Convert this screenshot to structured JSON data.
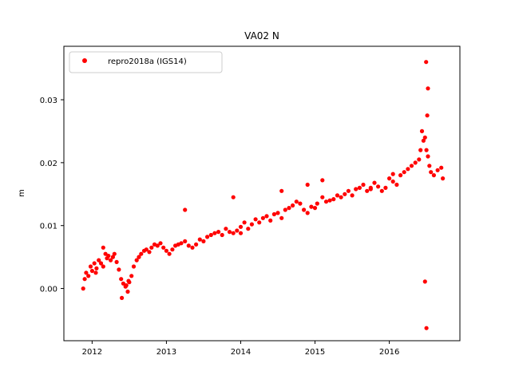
{
  "chart_data": {
    "type": "scatter",
    "title": "VA02 N",
    "xlabel": "",
    "ylabel": "m",
    "xlim": [
      2011.62,
      2016.95
    ],
    "ylim": [
      -0.0083,
      0.0385
    ],
    "x_ticks": [
      2012,
      2013,
      2014,
      2015,
      2016
    ],
    "x_tick_labels": [
      "2012",
      "2013",
      "2014",
      "2015",
      "2016"
    ],
    "y_ticks": [
      0.0,
      0.01,
      0.02,
      0.03
    ],
    "y_tick_labels": [
      "0.00",
      "0.01",
      "0.02",
      "0.03"
    ],
    "grid": false,
    "legend_position": "upper-left",
    "series": [
      {
        "name": "repro2018a (IGS14)",
        "color": "#ff0000",
        "marker": "circle",
        "x": [
          2011.88,
          2011.9,
          2011.92,
          2011.95,
          2011.98,
          2012.0,
          2012.03,
          2012.06,
          2012.09,
          2012.12,
          2012.15,
          2012.18,
          2012.2,
          2012.22,
          2012.25,
          2012.28,
          2012.3,
          2012.33,
          2012.36,
          2012.39,
          2012.42,
          2012.45,
          2012.48,
          2012.5,
          2012.53,
          2012.56,
          2012.6,
          2012.63,
          2012.66,
          2012.7,
          2012.73,
          2012.77,
          2012.8,
          2012.84,
          2012.88,
          2012.92,
          2012.96,
          2013.0,
          2013.04,
          2013.08,
          2013.12,
          2013.16,
          2013.2,
          2013.25,
          2013.3,
          2013.35,
          2013.4,
          2013.45,
          2013.5,
          2013.55,
          2013.6,
          2013.65,
          2013.7,
          2013.75,
          2013.8,
          2013.85,
          2013.9,
          2013.95,
          2014.0,
          2014.05,
          2014.1,
          2014.15,
          2014.2,
          2014.25,
          2014.3,
          2014.35,
          2014.4,
          2014.45,
          2014.5,
          2014.55,
          2014.6,
          2014.65,
          2014.7,
          2014.75,
          2014.8,
          2014.85,
          2014.9,
          2014.95,
          2015.0,
          2015.03,
          2015.1,
          2015.15,
          2015.2,
          2015.25,
          2015.3,
          2015.35,
          2015.4,
          2015.45,
          2015.5,
          2015.55,
          2015.6,
          2015.65,
          2015.7,
          2015.75,
          2015.8,
          2015.85,
          2015.9,
          2015.95,
          2016.0,
          2016.05,
          2016.1,
          2016.15,
          2016.2,
          2016.25,
          2016.3,
          2016.35,
          2016.4,
          2016.42,
          2016.44,
          2016.46,
          2016.48,
          2016.5,
          2016.52,
          2016.54,
          2016.56,
          2016.6,
          2016.65,
          2016.7,
          2016.72,
          2012.05,
          2012.15,
          2012.4,
          2012.46,
          2012.49,
          2013.25,
          2013.9,
          2014.0,
          2014.55,
          2014.9,
          2015.1,
          2015.75,
          2016.05,
          2016.48,
          2016.5,
          2016.52,
          2016.51,
          2016.495
        ],
        "y": [
          0.0,
          0.0015,
          0.0025,
          0.002,
          0.0035,
          0.0028,
          0.004,
          0.0032,
          0.0045,
          0.004,
          0.0035,
          0.0055,
          0.0048,
          0.0052,
          0.0045,
          0.005,
          0.0055,
          0.0042,
          0.003,
          0.0015,
          0.0008,
          0.0003,
          -0.0005,
          0.001,
          0.002,
          0.0035,
          0.0045,
          0.005,
          0.0055,
          0.006,
          0.0062,
          0.0058,
          0.0065,
          0.007,
          0.0068,
          0.0072,
          0.0065,
          0.006,
          0.0055,
          0.0062,
          0.0068,
          0.007,
          0.0072,
          0.0075,
          0.0068,
          0.0065,
          0.007,
          0.0078,
          0.0075,
          0.0082,
          0.0085,
          0.0088,
          0.009,
          0.0085,
          0.0095,
          0.009,
          0.0088,
          0.0092,
          0.0098,
          0.0105,
          0.0095,
          0.0102,
          0.011,
          0.0105,
          0.0112,
          0.0115,
          0.0108,
          0.0118,
          0.012,
          0.0112,
          0.0125,
          0.0128,
          0.0132,
          0.0138,
          0.0135,
          0.0125,
          0.012,
          0.013,
          0.0128,
          0.0135,
          0.0145,
          0.0138,
          0.014,
          0.0142,
          0.0148,
          0.0145,
          0.015,
          0.0155,
          0.0148,
          0.0158,
          0.016,
          0.0165,
          0.0155,
          0.016,
          0.0168,
          0.0162,
          0.0155,
          0.016,
          0.0175,
          0.017,
          0.0165,
          0.018,
          0.0185,
          0.019,
          0.0195,
          0.02,
          0.0205,
          0.022,
          0.025,
          0.0235,
          0.024,
          0.022,
          0.021,
          0.0195,
          0.0185,
          0.018,
          0.0188,
          0.0192,
          0.0175,
          0.0025,
          0.0065,
          -0.0015,
          0.0005,
          0.0012,
          0.0125,
          0.0145,
          0.0088,
          0.0155,
          0.0165,
          0.0172,
          0.0158,
          0.0182,
          0.0011,
          -0.0063,
          0.0318,
          0.0275,
          0.036
        ]
      }
    ]
  }
}
